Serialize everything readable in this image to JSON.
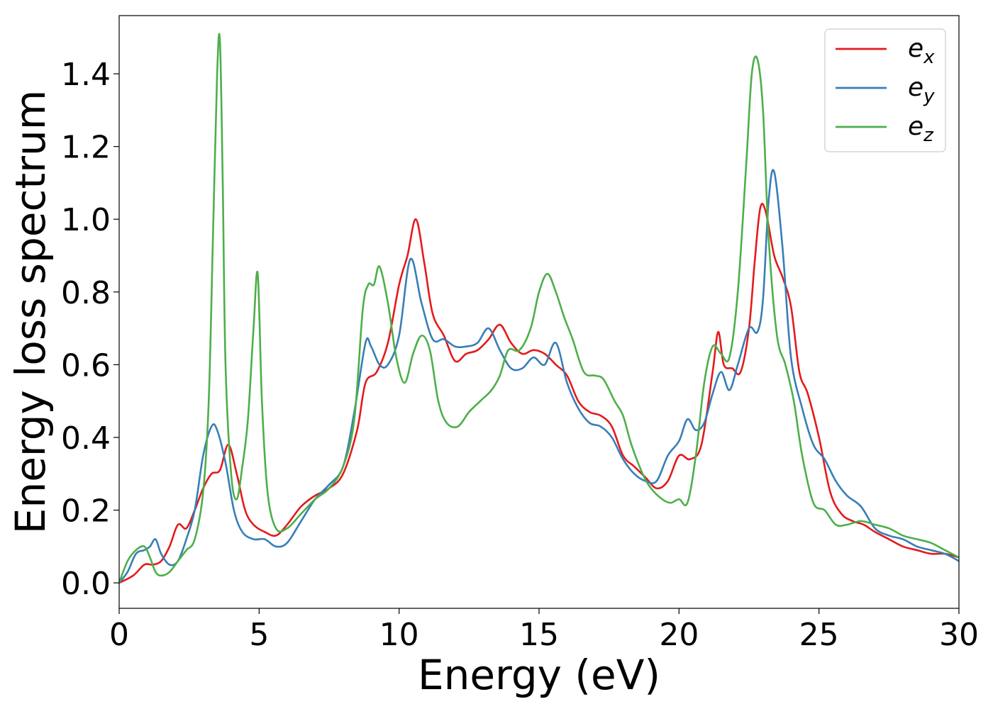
{
  "chart_data": {
    "type": "line",
    "title": "",
    "xlabel": "Energy (eV)",
    "ylabel": "Energy loss spectrum",
    "xlim": [
      0,
      30
    ],
    "ylim": [
      -0.07,
      1.56
    ],
    "xticks": [
      0,
      5,
      10,
      15,
      20,
      25,
      30
    ],
    "xtick_labels": [
      "0",
      "5",
      "10",
      "15",
      "20",
      "25",
      "30"
    ],
    "yticks": [
      0.0,
      0.2,
      0.4,
      0.6,
      0.8,
      1.0,
      1.2,
      1.4
    ],
    "ytick_labels": [
      "0.0",
      "0.2",
      "0.4",
      "0.6",
      "0.8",
      "1.0",
      "1.2",
      "1.4"
    ],
    "grid": false,
    "legend_position": "top-right",
    "series": [
      {
        "name": "e_x",
        "legend_base": "e",
        "legend_sub": "x",
        "color": "#e41a1c",
        "x": [
          0,
          0.5,
          0.9,
          1.2,
          1.5,
          1.8,
          2.1,
          2.4,
          2.7,
          3.0,
          3.3,
          3.6,
          3.9,
          4.2,
          4.5,
          4.8,
          5.2,
          5.6,
          6.0,
          6.5,
          7.0,
          7.5,
          8.0,
          8.5,
          8.8,
          9.2,
          9.6,
          10.0,
          10.3,
          10.6,
          10.9,
          11.2,
          11.6,
          12.0,
          12.4,
          12.8,
          13.2,
          13.6,
          14.0,
          14.4,
          14.8,
          15.2,
          15.6,
          16.0,
          16.4,
          16.8,
          17.2,
          17.6,
          18.0,
          18.4,
          18.8,
          19.2,
          19.6,
          20.0,
          20.4,
          20.8,
          21.2,
          21.4,
          21.6,
          21.9,
          22.2,
          22.5,
          22.7,
          22.9,
          23.1,
          23.4,
          23.7,
          24.0,
          24.3,
          24.6,
          25.0,
          25.4,
          25.8,
          26.2,
          26.6,
          27.0,
          27.5,
          28.0,
          28.5,
          29.0,
          29.5,
          30.0
        ],
        "y": [
          0.0,
          0.02,
          0.05,
          0.05,
          0.06,
          0.1,
          0.16,
          0.15,
          0.2,
          0.26,
          0.3,
          0.31,
          0.38,
          0.3,
          0.2,
          0.16,
          0.14,
          0.13,
          0.16,
          0.21,
          0.24,
          0.26,
          0.3,
          0.42,
          0.55,
          0.58,
          0.66,
          0.82,
          0.9,
          1.0,
          0.88,
          0.74,
          0.68,
          0.61,
          0.63,
          0.64,
          0.67,
          0.71,
          0.66,
          0.63,
          0.64,
          0.63,
          0.6,
          0.57,
          0.5,
          0.47,
          0.46,
          0.43,
          0.35,
          0.32,
          0.29,
          0.26,
          0.28,
          0.35,
          0.34,
          0.38,
          0.58,
          0.69,
          0.6,
          0.59,
          0.58,
          0.7,
          0.88,
          1.03,
          1.02,
          0.9,
          0.84,
          0.76,
          0.58,
          0.52,
          0.4,
          0.25,
          0.19,
          0.17,
          0.16,
          0.14,
          0.12,
          0.1,
          0.09,
          0.08,
          0.08,
          0.07
        ]
      },
      {
        "name": "e_y",
        "legend_base": "e",
        "legend_sub": "y",
        "color": "#377eb8",
        "x": [
          0,
          0.3,
          0.6,
          0.9,
          1.1,
          1.3,
          1.5,
          1.8,
          2.1,
          2.4,
          2.7,
          3.0,
          3.3,
          3.5,
          3.8,
          4.1,
          4.4,
          4.8,
          5.2,
          5.6,
          6.0,
          6.5,
          7.0,
          7.5,
          8.0,
          8.4,
          8.8,
          9.0,
          9.3,
          9.6,
          10.0,
          10.4,
          10.8,
          11.2,
          11.6,
          12.0,
          12.4,
          12.8,
          13.2,
          13.6,
          14.0,
          14.4,
          14.8,
          15.2,
          15.6,
          16.0,
          16.4,
          16.8,
          17.2,
          17.6,
          18.0,
          18.4,
          18.8,
          19.2,
          19.6,
          20.0,
          20.3,
          20.6,
          20.9,
          21.2,
          21.5,
          21.8,
          22.1,
          22.5,
          22.8,
          23.0,
          23.2,
          23.4,
          23.7,
          24.0,
          24.4,
          24.8,
          25.2,
          25.6,
          26.0,
          26.5,
          27.0,
          27.5,
          28.0,
          28.5,
          29.0,
          29.5,
          30.0
        ],
        "y": [
          0.0,
          0.03,
          0.08,
          0.09,
          0.1,
          0.12,
          0.08,
          0.05,
          0.06,
          0.12,
          0.2,
          0.35,
          0.43,
          0.42,
          0.33,
          0.2,
          0.14,
          0.12,
          0.12,
          0.1,
          0.11,
          0.17,
          0.23,
          0.27,
          0.32,
          0.47,
          0.66,
          0.65,
          0.6,
          0.6,
          0.68,
          0.89,
          0.77,
          0.67,
          0.67,
          0.65,
          0.65,
          0.66,
          0.7,
          0.64,
          0.59,
          0.59,
          0.62,
          0.6,
          0.66,
          0.55,
          0.48,
          0.44,
          0.43,
          0.4,
          0.34,
          0.3,
          0.28,
          0.28,
          0.35,
          0.39,
          0.45,
          0.42,
          0.44,
          0.52,
          0.58,
          0.53,
          0.6,
          0.7,
          0.69,
          0.78,
          1.05,
          1.13,
          0.92,
          0.62,
          0.48,
          0.38,
          0.34,
          0.28,
          0.24,
          0.21,
          0.15,
          0.13,
          0.12,
          0.1,
          0.09,
          0.08,
          0.06
        ]
      },
      {
        "name": "e_z",
        "legend_base": "e",
        "legend_sub": "z",
        "color": "#4daf4a",
        "x": [
          0,
          0.3,
          0.6,
          0.9,
          1.1,
          1.3,
          1.5,
          1.8,
          2.1,
          2.4,
          2.7,
          3.0,
          3.2,
          3.35,
          3.5,
          3.6,
          3.7,
          3.8,
          4.0,
          4.2,
          4.4,
          4.6,
          4.8,
          4.95,
          5.1,
          5.3,
          5.6,
          6.0,
          6.5,
          7.0,
          7.5,
          8.0,
          8.4,
          8.7,
          8.9,
          9.1,
          9.3,
          9.6,
          9.9,
          10.2,
          10.5,
          10.8,
          11.1,
          11.4,
          11.7,
          12.1,
          12.5,
          12.9,
          13.3,
          13.6,
          13.9,
          14.3,
          14.7,
          15.0,
          15.3,
          15.6,
          15.9,
          16.2,
          16.6,
          17.0,
          17.3,
          17.7,
          18.0,
          18.3,
          18.7,
          19.0,
          19.4,
          19.7,
          20.0,
          20.3,
          20.6,
          20.9,
          21.2,
          21.5,
          21.8,
          22.1,
          22.4,
          22.6,
          22.8,
          23.0,
          23.2,
          23.5,
          23.8,
          24.1,
          24.4,
          24.8,
          25.2,
          25.6,
          26.0,
          26.5,
          27.0,
          27.5,
          28.0,
          28.5,
          29.0,
          29.5,
          30.0
        ],
        "y": [
          0.0,
          0.06,
          0.09,
          0.1,
          0.07,
          0.03,
          0.02,
          0.03,
          0.06,
          0.09,
          0.12,
          0.25,
          0.5,
          0.95,
          1.4,
          1.49,
          1.1,
          0.6,
          0.3,
          0.23,
          0.32,
          0.45,
          0.7,
          0.85,
          0.5,
          0.25,
          0.15,
          0.15,
          0.19,
          0.23,
          0.26,
          0.32,
          0.45,
          0.75,
          0.82,
          0.82,
          0.87,
          0.77,
          0.62,
          0.55,
          0.63,
          0.68,
          0.64,
          0.5,
          0.44,
          0.43,
          0.47,
          0.5,
          0.53,
          0.57,
          0.64,
          0.64,
          0.7,
          0.8,
          0.85,
          0.8,
          0.73,
          0.67,
          0.58,
          0.57,
          0.56,
          0.5,
          0.46,
          0.38,
          0.3,
          0.26,
          0.23,
          0.22,
          0.23,
          0.22,
          0.35,
          0.55,
          0.65,
          0.63,
          0.62,
          0.8,
          1.15,
          1.4,
          1.44,
          1.3,
          0.95,
          0.68,
          0.6,
          0.5,
          0.35,
          0.22,
          0.2,
          0.16,
          0.16,
          0.17,
          0.16,
          0.15,
          0.13,
          0.12,
          0.11,
          0.09,
          0.07
        ]
      }
    ]
  }
}
